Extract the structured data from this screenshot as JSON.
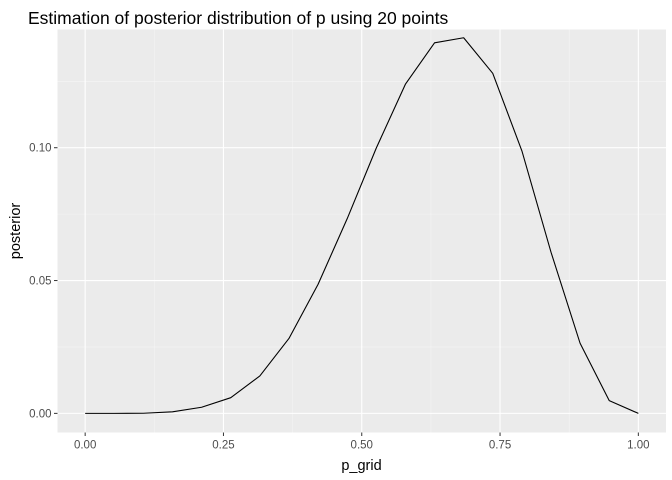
{
  "chart_data": {
    "type": "line",
    "title": "Estimation of posterior distribution of p using 20 points",
    "xlabel": "p_grid",
    "ylabel": "posterior",
    "xlim": [
      -0.05,
      1.05
    ],
    "ylim": [
      -0.0072,
      0.1445
    ],
    "x_ticks": [
      0.0,
      0.25,
      0.5,
      0.75,
      1.0
    ],
    "x_tick_labels": [
      "0.00",
      "0.25",
      "0.50",
      "0.75",
      "1.00"
    ],
    "y_ticks": [
      0.0,
      0.05,
      0.1
    ],
    "y_tick_labels": [
      "0.00",
      "0.05",
      "0.10"
    ],
    "grid": true,
    "legend": "none",
    "colors": {
      "panel_background": "#ebebeb",
      "grid_major": "#ffffff",
      "grid_minor": "#f5f5f5",
      "line": "#000000",
      "tick_text": "#4d4d4d",
      "tick_mark": "#333333"
    },
    "series": [
      {
        "x": [
          0.0,
          0.0526,
          0.1053,
          0.1579,
          0.2105,
          0.2632,
          0.3158,
          0.3684,
          0.4211,
          0.4737,
          0.5263,
          0.5789,
          0.6316,
          0.6842,
          0.7368,
          0.7895,
          0.8421,
          0.8947,
          0.9474,
          1.0
        ],
        "y": [
          0.0,
          0.0,
          5e-05,
          0.0006,
          0.0023,
          0.0059,
          0.0141,
          0.0282,
          0.0486,
          0.0733,
          0.0999,
          0.1239,
          0.1395,
          0.1414,
          0.128,
          0.0988,
          0.0607,
          0.0264,
          0.0048,
          0.0
        ]
      }
    ]
  }
}
